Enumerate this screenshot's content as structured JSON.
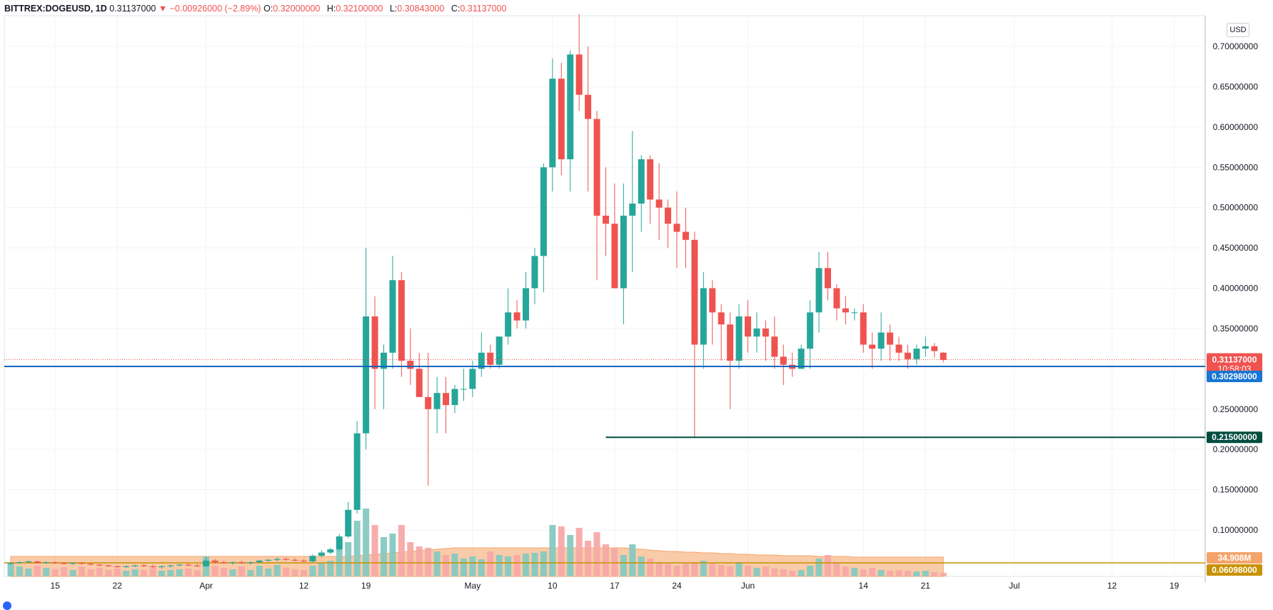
{
  "header": {
    "symbol": "BITTREX:DOGEUSD, 1D",
    "last": "0.31137000",
    "change_arrow": "▼",
    "change": "−0.00926000 (−2.89%)",
    "o_label": "O:",
    "o_value": "0.32000000",
    "h_label": "H:",
    "h_value": "0.32100000",
    "l_label": "L:",
    "l_value": "0.30843000",
    "c_label": "C:",
    "c_value": "0.31137000"
  },
  "currency_badge": "USD",
  "colors": {
    "up": "#26a69a",
    "down": "#ef5350",
    "up_volume": "#86c9c1",
    "down_volume": "#f7a9a7",
    "support_line": "#1565c0",
    "support_tag": "#1976d2",
    "low_line": "#004d40",
    "volume_ma": "#f7b98b",
    "volume_level": "#c79100"
  },
  "chart_data": {
    "type": "candlestick",
    "title": "BITTREX:DOGEUSD, 1D",
    "x_ticks": [
      {
        "label": "15",
        "date": "2021-03-15"
      },
      {
        "label": "22",
        "date": "2021-03-22"
      },
      {
        "label": "Apr",
        "date": "2021-04-01"
      },
      {
        "label": "12",
        "date": "2021-04-12"
      },
      {
        "label": "19",
        "date": "2021-04-19"
      },
      {
        "label": "May",
        "date": "2021-05-01"
      },
      {
        "label": "10",
        "date": "2021-05-10"
      },
      {
        "label": "17",
        "date": "2021-05-17"
      },
      {
        "label": "24",
        "date": "2021-05-24"
      },
      {
        "label": "Jun",
        "date": "2021-06-01"
      },
      {
        "label": "14",
        "date": "2021-06-14"
      },
      {
        "label": "21",
        "date": "2021-06-21"
      },
      {
        "label": "Jul",
        "date": "2021-07-01"
      },
      {
        "label": "12",
        "date": "2021-07-12"
      },
      {
        "label": "19",
        "date": "2021-07-19"
      }
    ],
    "y_ticks": [
      "0.70000000",
      "0.65000000",
      "0.60000000",
      "0.55000000",
      "0.50000000",
      "0.45000000",
      "0.40000000",
      "0.35000000",
      "0.25000000",
      "0.20000000",
      "0.15000000",
      "0.10000000"
    ],
    "ylim": [
      0.07,
      0.73
    ],
    "first_date": "2021-03-10",
    "candles": [
      [
        0.058,
        0.06,
        0.057,
        0.059
      ],
      [
        0.059,
        0.061,
        0.058,
        0.06
      ],
      [
        0.06,
        0.062,
        0.059,
        0.061
      ],
      [
        0.061,
        0.062,
        0.058,
        0.059
      ],
      [
        0.059,
        0.061,
        0.058,
        0.06
      ],
      [
        0.06,
        0.061,
        0.058,
        0.059
      ],
      [
        0.059,
        0.06,
        0.057,
        0.058
      ],
      [
        0.058,
        0.06,
        0.057,
        0.059
      ],
      [
        0.059,
        0.06,
        0.057,
        0.058
      ],
      [
        0.058,
        0.059,
        0.056,
        0.057
      ],
      [
        0.057,
        0.058,
        0.055,
        0.056
      ],
      [
        0.056,
        0.057,
        0.054,
        0.055
      ],
      [
        0.055,
        0.056,
        0.053,
        0.054
      ],
      [
        0.054,
        0.056,
        0.053,
        0.055
      ],
      [
        0.055,
        0.057,
        0.054,
        0.056
      ],
      [
        0.056,
        0.058,
        0.054,
        0.055
      ],
      [
        0.055,
        0.057,
        0.053,
        0.054
      ],
      [
        0.054,
        0.056,
        0.052,
        0.055
      ],
      [
        0.055,
        0.057,
        0.053,
        0.056
      ],
      [
        0.056,
        0.058,
        0.055,
        0.057
      ],
      [
        0.057,
        0.059,
        0.055,
        0.056
      ],
      [
        0.056,
        0.058,
        0.054,
        0.055
      ],
      [
        0.055,
        0.066,
        0.054,
        0.062
      ],
      [
        0.062,
        0.064,
        0.058,
        0.06
      ],
      [
        0.06,
        0.062,
        0.058,
        0.059
      ],
      [
        0.059,
        0.061,
        0.057,
        0.06
      ],
      [
        0.06,
        0.062,
        0.058,
        0.059
      ],
      [
        0.059,
        0.061,
        0.057,
        0.06
      ],
      [
        0.06,
        0.063,
        0.059,
        0.062
      ],
      [
        0.062,
        0.064,
        0.06,
        0.063
      ],
      [
        0.063,
        0.066,
        0.061,
        0.064
      ],
      [
        0.064,
        0.066,
        0.062,
        0.063
      ],
      [
        0.063,
        0.065,
        0.061,
        0.062
      ],
      [
        0.062,
        0.064,
        0.06,
        0.061
      ],
      [
        0.061,
        0.07,
        0.06,
        0.068
      ],
      [
        0.068,
        0.075,
        0.066,
        0.072
      ],
      [
        0.072,
        0.078,
        0.07,
        0.076
      ],
      [
        0.076,
        0.095,
        0.074,
        0.092
      ],
      [
        0.092,
        0.135,
        0.09,
        0.125
      ],
      [
        0.125,
        0.235,
        0.12,
        0.22
      ],
      [
        0.22,
        0.45,
        0.2,
        0.365
      ],
      [
        0.365,
        0.39,
        0.25,
        0.3
      ],
      [
        0.3,
        0.33,
        0.25,
        0.32
      ],
      [
        0.32,
        0.44,
        0.3,
        0.41
      ],
      [
        0.41,
        0.42,
        0.29,
        0.31
      ],
      [
        0.31,
        0.35,
        0.28,
        0.3
      ],
      [
        0.3,
        0.32,
        0.27,
        0.265
      ],
      [
        0.265,
        0.32,
        0.155,
        0.25
      ],
      [
        0.25,
        0.29,
        0.22,
        0.27
      ],
      [
        0.27,
        0.29,
        0.22,
        0.255
      ],
      [
        0.255,
        0.28,
        0.245,
        0.275
      ],
      [
        0.275,
        0.3,
        0.26,
        0.275
      ],
      [
        0.275,
        0.31,
        0.265,
        0.3
      ],
      [
        0.3,
        0.345,
        0.29,
        0.32
      ],
      [
        0.32,
        0.33,
        0.3,
        0.305
      ],
      [
        0.305,
        0.34,
        0.3,
        0.34
      ],
      [
        0.34,
        0.4,
        0.33,
        0.37
      ],
      [
        0.37,
        0.385,
        0.35,
        0.36
      ],
      [
        0.36,
        0.42,
        0.35,
        0.4
      ],
      [
        0.4,
        0.45,
        0.38,
        0.44
      ],
      [
        0.44,
        0.555,
        0.395,
        0.55
      ],
      [
        0.55,
        0.685,
        0.52,
        0.66
      ],
      [
        0.66,
        0.68,
        0.54,
        0.56
      ],
      [
        0.56,
        0.695,
        0.52,
        0.69
      ],
      [
        0.69,
        0.74,
        0.62,
        0.64
      ],
      [
        0.64,
        0.7,
        0.52,
        0.61
      ],
      [
        0.61,
        0.62,
        0.41,
        0.49
      ],
      [
        0.49,
        0.55,
        0.44,
        0.48
      ],
      [
        0.48,
        0.53,
        0.4,
        0.4
      ],
      [
        0.4,
        0.53,
        0.355,
        0.49
      ],
      [
        0.49,
        0.595,
        0.42,
        0.505
      ],
      [
        0.505,
        0.565,
        0.47,
        0.56
      ],
      [
        0.56,
        0.565,
        0.48,
        0.51
      ],
      [
        0.51,
        0.555,
        0.46,
        0.5
      ],
      [
        0.5,
        0.51,
        0.45,
        0.48
      ],
      [
        0.48,
        0.52,
        0.425,
        0.47
      ],
      [
        0.47,
        0.5,
        0.425,
        0.46
      ],
      [
        0.46,
        0.47,
        0.215,
        0.33
      ],
      [
        0.33,
        0.42,
        0.3,
        0.4
      ],
      [
        0.4,
        0.41,
        0.33,
        0.37
      ],
      [
        0.37,
        0.38,
        0.31,
        0.355
      ],
      [
        0.355,
        0.37,
        0.25,
        0.31
      ],
      [
        0.31,
        0.38,
        0.3,
        0.365
      ],
      [
        0.365,
        0.385,
        0.32,
        0.34
      ],
      [
        0.34,
        0.37,
        0.32,
        0.35
      ],
      [
        0.35,
        0.36,
        0.31,
        0.34
      ],
      [
        0.34,
        0.365,
        0.3,
        0.315
      ],
      [
        0.315,
        0.33,
        0.28,
        0.305
      ],
      [
        0.305,
        0.32,
        0.29,
        0.3
      ],
      [
        0.3,
        0.33,
        0.3,
        0.325
      ],
      [
        0.325,
        0.385,
        0.3,
        0.37
      ],
      [
        0.37,
        0.445,
        0.345,
        0.425
      ],
      [
        0.425,
        0.445,
        0.385,
        0.4
      ],
      [
        0.4,
        0.405,
        0.36,
        0.375
      ],
      [
        0.375,
        0.39,
        0.355,
        0.37
      ],
      [
        0.37,
        0.375,
        0.36,
        0.37
      ],
      [
        0.37,
        0.38,
        0.32,
        0.33
      ],
      [
        0.33,
        0.345,
        0.3,
        0.325
      ],
      [
        0.325,
        0.37,
        0.31,
        0.345
      ],
      [
        0.345,
        0.355,
        0.31,
        0.33
      ],
      [
        0.33,
        0.34,
        0.31,
        0.32
      ],
      [
        0.32,
        0.33,
        0.3,
        0.312
      ],
      [
        0.312,
        0.33,
        0.305,
        0.325
      ],
      [
        0.325,
        0.34,
        0.315,
        0.328
      ],
      [
        0.328,
        0.332,
        0.314,
        0.322
      ],
      [
        0.32,
        0.321,
        0.308,
        0.311
      ]
    ],
    "volumes": [
      18,
      14,
      11,
      15,
      12,
      10,
      13,
      9,
      14,
      10,
      12,
      9,
      11,
      8,
      10,
      9,
      12,
      8,
      9,
      10,
      11,
      9,
      28,
      15,
      12,
      10,
      14,
      9,
      15,
      11,
      16,
      12,
      10,
      9,
      15,
      19,
      22,
      38,
      48,
      78,
      95,
      72,
      55,
      60,
      72,
      48,
      42,
      40,
      35,
      30,
      32,
      25,
      28,
      24,
      35,
      30,
      28,
      30,
      32,
      33,
      35,
      72,
      70,
      58,
      68,
      50,
      62,
      45,
      40,
      30,
      45,
      28,
      25,
      20,
      18,
      15,
      18,
      20,
      22,
      18,
      16,
      14,
      20,
      15,
      12,
      14,
      11,
      10,
      8,
      9,
      15,
      25,
      30,
      20,
      14,
      12,
      10,
      12,
      9,
      8,
      9,
      8,
      7,
      8,
      6,
      5
    ],
    "volume_ma": [
      28,
      28,
      28,
      28,
      28,
      28,
      28,
      28,
      28,
      28,
      28,
      28,
      28,
      28,
      28,
      28,
      28,
      28,
      28,
      28,
      28,
      28,
      28,
      28,
      28,
      28,
      28,
      28,
      28,
      28,
      28,
      28,
      28,
      28,
      28,
      28,
      28,
      28,
      28,
      29,
      30,
      31,
      32,
      33,
      34,
      35,
      36,
      37,
      38,
      39,
      40,
      40,
      40,
      40,
      40,
      40,
      40,
      40,
      40,
      40,
      40,
      40,
      40,
      40,
      40,
      40,
      40,
      40,
      40,
      40,
      39,
      38,
      37,
      36,
      35,
      35,
      34,
      34,
      33,
      33,
      32,
      32,
      31,
      31,
      30,
      30,
      30,
      29,
      29,
      29,
      29,
      28,
      28,
      28,
      28,
      27,
      27,
      27,
      27,
      27,
      27,
      27,
      27,
      27,
      27,
      27
    ],
    "last_price": "0.31137000",
    "countdown": "10:58:03",
    "support_level": {
      "value": 0.30298,
      "label": "0.30298000"
    },
    "low_level": {
      "value": 0.215,
      "label": "0.21500000",
      "start_date": "2021-05-16"
    },
    "volume_last": "34.908M",
    "volume_level_label": "0.06098000"
  }
}
